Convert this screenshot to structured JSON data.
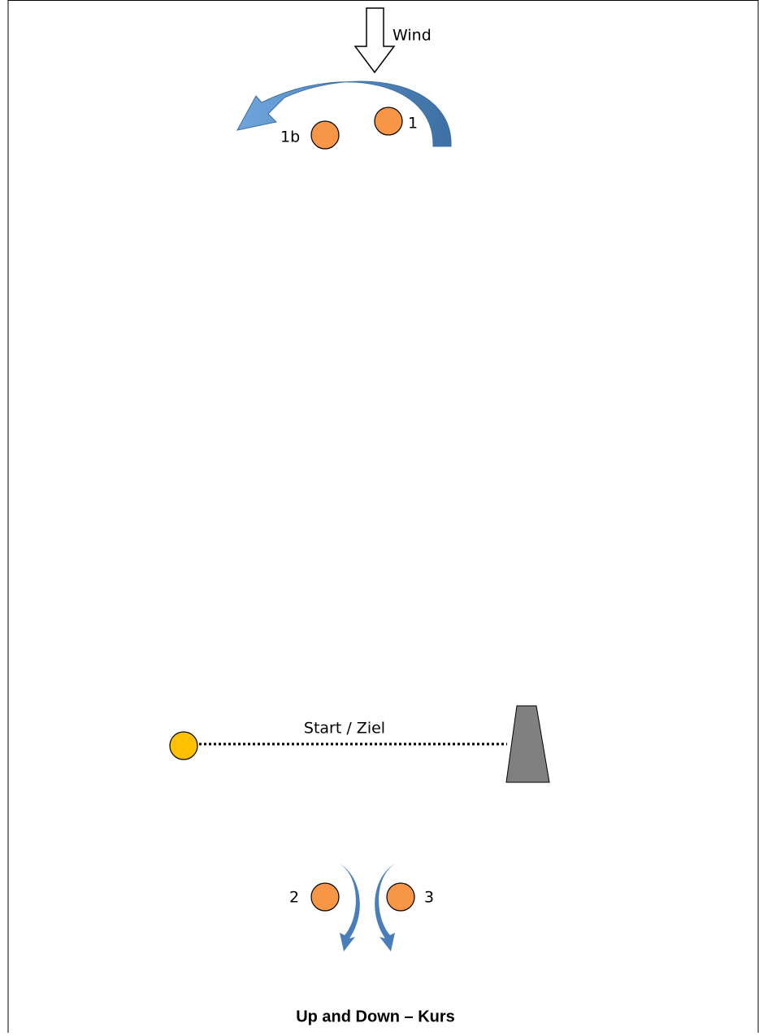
{
  "wind": {
    "label": "Wind"
  },
  "marks": [
    {
      "label": "1b"
    },
    {
      "label": "1"
    },
    {
      "label": "2"
    },
    {
      "label": "3"
    }
  ],
  "line": {
    "label": "Start / Ziel"
  },
  "title": "Up and Down – Kurs"
}
